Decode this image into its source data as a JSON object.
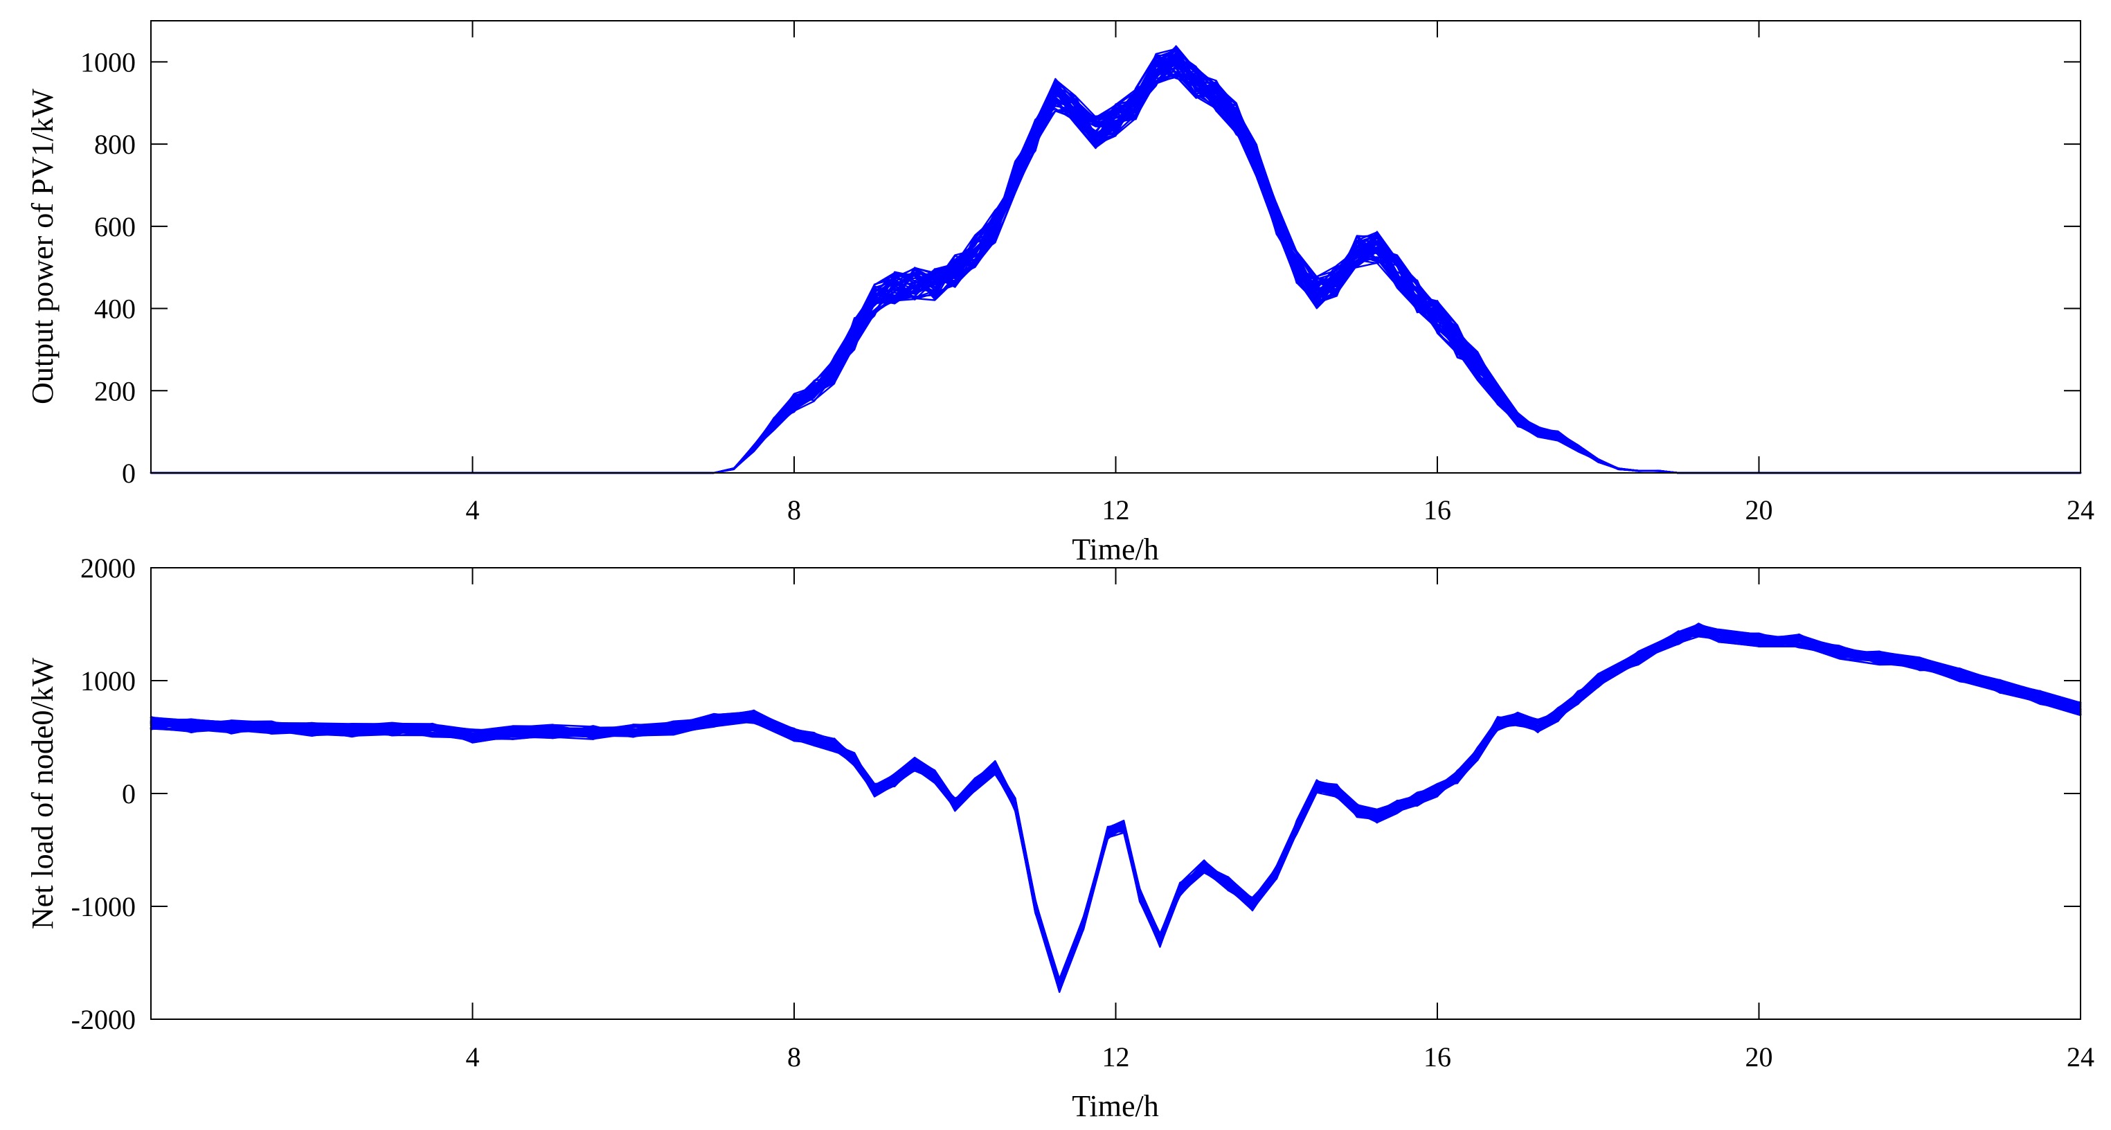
{
  "chart_data": [
    {
      "type": "line",
      "title": "",
      "xlabel": "Time/h",
      "ylabel": "Output power of PV1/kW",
      "xlim": [
        0,
        24
      ],
      "ylim": [
        0,
        1100
      ],
      "x_ticks": [
        4,
        8,
        12,
        16,
        20,
        24
      ],
      "y_ticks": [
        0,
        200,
        400,
        600,
        800,
        1000
      ],
      "x_tick_labels": [
        "4",
        "8",
        "12",
        "16",
        "20",
        "24"
      ],
      "y_tick_labels": [
        "0",
        "200",
        "400",
        "600",
        "800",
        "1000"
      ],
      "grid": false,
      "legend": "none",
      "line_color": "#0000ff",
      "scenario_count": 50,
      "spread": 40,
      "x": [
        0,
        0.5,
        1,
        1.5,
        2,
        2.5,
        3,
        3.5,
        4,
        4.5,
        5,
        5.5,
        6,
        6.5,
        7,
        7.25,
        7.5,
        7.75,
        8,
        8.25,
        8.5,
        8.75,
        9,
        9.25,
        9.5,
        9.75,
        10,
        10.25,
        10.5,
        10.75,
        11,
        11.25,
        11.5,
        11.75,
        12,
        12.25,
        12.5,
        12.75,
        13,
        13.25,
        13.5,
        13.75,
        14,
        14.25,
        14.5,
        14.75,
        15,
        15.25,
        15.5,
        15.75,
        16,
        16.25,
        16.5,
        16.75,
        17,
        17.25,
        17.5,
        17.75,
        18,
        18.25,
        18.5,
        18.75,
        19,
        19.25,
        19.5,
        20,
        20.5,
        21,
        21.5,
        22,
        22.5,
        23,
        23.5,
        24
      ],
      "y": [
        0,
        0,
        0,
        0,
        0,
        0,
        0,
        0,
        0,
        0,
        0,
        0,
        0,
        0,
        0,
        10,
        60,
        120,
        170,
        200,
        250,
        340,
        420,
        450,
        460,
        460,
        490,
        540,
        600,
        720,
        820,
        920,
        880,
        830,
        860,
        900,
        980,
        1000,
        950,
        920,
        860,
        760,
        620,
        500,
        440,
        470,
        540,
        550,
        490,
        430,
        380,
        320,
        260,
        190,
        130,
        100,
        90,
        60,
        30,
        10,
        5,
        5,
        0,
        0,
        0,
        0,
        0,
        0,
        0,
        0,
        0,
        0,
        0,
        0
      ]
    },
    {
      "type": "line",
      "title": "",
      "xlabel": "Time/h",
      "ylabel": "Net load of node0/kW",
      "xlim": [
        0,
        24
      ],
      "ylim": [
        -2000,
        2000
      ],
      "x_ticks": [
        4,
        8,
        12,
        16,
        20,
        24
      ],
      "y_ticks": [
        -2000,
        -1000,
        0,
        1000,
        2000
      ],
      "x_tick_labels": [
        "4",
        "8",
        "12",
        "16",
        "20",
        "24"
      ],
      "y_tick_labels": [
        "-2000",
        "-1000",
        "0",
        "1000",
        "2000"
      ],
      "grid": false,
      "legend": "none",
      "line_color": "#0000ff",
      "scenario_count": 50,
      "spread": 60,
      "x": [
        0,
        0.5,
        1,
        1.5,
        2,
        2.5,
        3,
        3.5,
        4,
        4.5,
        5,
        5.5,
        6,
        6.5,
        7,
        7.5,
        8,
        8.25,
        8.5,
        8.75,
        9,
        9.25,
        9.5,
        9.75,
        10,
        10.25,
        10.5,
        10.75,
        11,
        11.3,
        11.6,
        11.9,
        12.1,
        12.3,
        12.55,
        12.8,
        13.1,
        13.4,
        13.7,
        14,
        14.25,
        14.5,
        14.75,
        15,
        15.25,
        15.5,
        15.75,
        16,
        16.25,
        16.5,
        16.75,
        17,
        17.25,
        17.5,
        17.75,
        18,
        18.5,
        19,
        19.25,
        19.5,
        20,
        20.5,
        21,
        21.5,
        22,
        22.5,
        23,
        23.5,
        24
      ],
      "y": [
        620,
        600,
        590,
        580,
        570,
        560,
        570,
        560,
        510,
        540,
        550,
        540,
        560,
        580,
        650,
        680,
        520,
        480,
        430,
        300,
        30,
        120,
        260,
        150,
        -100,
        80,
        230,
        -100,
        -1000,
        -1700,
        -1150,
        -350,
        -300,
        -900,
        -1300,
        -850,
        -650,
        -800,
        -980,
        -700,
        -300,
        60,
        20,
        -150,
        -200,
        -120,
        -50,
        30,
        150,
        350,
        620,
        660,
        600,
        700,
        850,
        1000,
        1200,
        1380,
        1450,
        1400,
        1360,
        1350,
        1250,
        1200,
        1150,
        1050,
        950,
        850,
        750
      ]
    }
  ]
}
